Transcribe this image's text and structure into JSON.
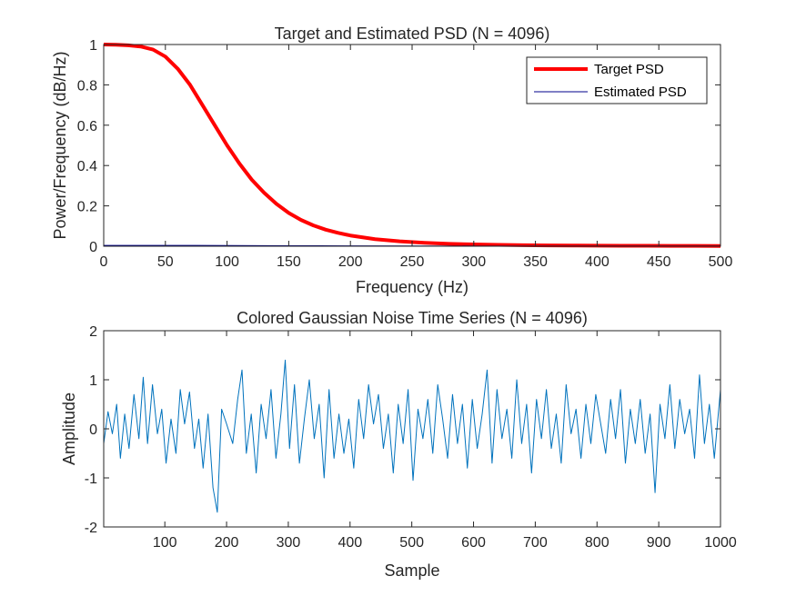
{
  "chart_data": [
    {
      "type": "line",
      "title": "Target and Estimated PSD (N = 4096)",
      "xlabel": "Frequency (Hz)",
      "ylabel": "Power/Frequency (dB/Hz)",
      "xlim": [
        0,
        500
      ],
      "ylim": [
        0,
        1
      ],
      "xticks": [
        0,
        50,
        100,
        150,
        200,
        250,
        300,
        350,
        400,
        450,
        500
      ],
      "yticks": [
        0,
        0.2,
        0.4,
        0.6,
        0.8,
        1
      ],
      "ytick_labels": [
        "0",
        "0.2",
        "0.4",
        "0.6",
        "0.8",
        "1"
      ],
      "grid": false,
      "legend": {
        "location": "top-right",
        "entries": [
          "Target PSD",
          "Estimated PSD"
        ]
      },
      "series": [
        {
          "name": "Target PSD",
          "color": "#ff0000",
          "x": [
            0,
            10,
            20,
            30,
            40,
            50,
            60,
            70,
            80,
            90,
            100,
            110,
            120,
            130,
            140,
            150,
            160,
            170,
            180,
            190,
            200,
            220,
            240,
            260,
            280,
            300,
            320,
            340,
            360,
            380,
            400,
            420,
            440,
            460,
            480,
            500
          ],
          "y": [
            1.0,
            0.999,
            0.996,
            0.99,
            0.975,
            0.94,
            0.88,
            0.8,
            0.7,
            0.6,
            0.5,
            0.41,
            0.33,
            0.265,
            0.21,
            0.165,
            0.13,
            0.103,
            0.082,
            0.066,
            0.053,
            0.035,
            0.024,
            0.017,
            0.012,
            0.009,
            0.007,
            0.005,
            0.004,
            0.0035,
            0.003,
            0.0025,
            0.002,
            0.0018,
            0.0015,
            0.0012
          ]
        },
        {
          "name": "Estimated PSD",
          "color": "#00008b",
          "x": [
            0,
            25,
            50,
            75,
            100,
            125,
            150,
            175,
            200,
            250,
            300,
            350,
            400,
            450,
            500
          ],
          "y": [
            0.004,
            0.004,
            0.004,
            0.004,
            0.0035,
            0.003,
            0.0025,
            0.002,
            0.0015,
            0.001,
            0.0008,
            0.0006,
            0.0005,
            0.0004,
            0.0003
          ]
        }
      ]
    },
    {
      "type": "line",
      "title": "Colored Gaussian Noise Time Series (N = 4096)",
      "xlabel": "Sample",
      "ylabel": "Amplitude",
      "xlim": [
        1,
        1000
      ],
      "ylim": [
        -2,
        2
      ],
      "xticks": [
        100,
        200,
        300,
        400,
        500,
        600,
        700,
        800,
        900,
        1000
      ],
      "yticks": [
        -2,
        -1,
        0,
        1,
        2
      ],
      "grid": false,
      "series": [
        {
          "name": "Amplitude",
          "color": "#0072bd",
          "x": [
            1,
            8,
            15,
            22,
            28,
            35,
            42,
            50,
            58,
            65,
            72,
            80,
            88,
            95,
            102,
            110,
            118,
            125,
            132,
            140,
            148,
            155,
            162,
            170,
            178,
            185,
            192,
            200,
            210,
            218,
            225,
            232,
            240,
            248,
            256,
            264,
            272,
            280,
            288,
            295,
            302,
            310,
            318,
            326,
            334,
            342,
            350,
            358,
            366,
            374,
            382,
            390,
            398,
            406,
            414,
            422,
            430,
            438,
            446,
            454,
            462,
            470,
            478,
            486,
            494,
            502,
            510,
            518,
            526,
            534,
            542,
            550,
            558,
            566,
            574,
            582,
            590,
            598,
            606,
            614,
            622,
            630,
            638,
            646,
            654,
            662,
            670,
            678,
            686,
            694,
            702,
            710,
            718,
            726,
            734,
            742,
            750,
            758,
            766,
            774,
            782,
            790,
            798,
            806,
            814,
            822,
            830,
            838,
            846,
            854,
            862,
            870,
            878,
            886,
            894,
            902,
            910,
            918,
            926,
            934,
            942,
            950,
            958,
            966,
            974,
            982,
            990,
            1000
          ],
          "y": [
            -0.3,
            0.35,
            -0.1,
            0.5,
            -0.6,
            0.3,
            -0.4,
            0.7,
            -0.2,
            1.05,
            -0.3,
            0.9,
            -0.1,
            0.4,
            -0.7,
            0.2,
            -0.5,
            0.8,
            0.1,
            0.75,
            -0.4,
            0.2,
            -0.8,
            0.3,
            -1.2,
            -1.7,
            0.4,
            0.1,
            -0.3,
            0.6,
            1.2,
            -0.5,
            0.3,
            -0.9,
            0.5,
            -0.2,
            0.8,
            -0.6,
            0.3,
            1.4,
            -0.4,
            0.9,
            -0.7,
            0.2,
            1.0,
            -0.2,
            0.5,
            -1.0,
            0.8,
            -0.6,
            0.3,
            -0.5,
            0.2,
            -0.8,
            0.6,
            -0.2,
            0.9,
            0.1,
            0.7,
            -0.4,
            0.3,
            -0.9,
            0.5,
            -0.3,
            0.8,
            -1.05,
            0.4,
            -0.2,
            0.6,
            -0.5,
            0.9,
            0.2,
            -0.6,
            0.7,
            -0.3,
            0.5,
            -0.8,
            0.6,
            -0.4,
            0.3,
            1.2,
            -0.7,
            0.8,
            -0.2,
            0.4,
            -0.6,
            1.0,
            -0.3,
            0.5,
            -0.9,
            0.6,
            -0.2,
            0.8,
            -0.4,
            0.3,
            -0.7,
            0.9,
            -0.1,
            0.4,
            -0.6,
            0.5,
            -0.3,
            0.7,
            0.1,
            -0.5,
            0.6,
            -0.2,
            0.8,
            -0.7,
            0.4,
            -0.3,
            0.6,
            -0.5,
            0.3,
            -1.3,
            0.5,
            -0.2,
            0.9,
            -0.4,
            0.6,
            -0.1,
            0.4,
            -0.6,
            1.1,
            -0.3,
            0.5,
            -0.6,
            0.8
          ]
        }
      ]
    }
  ]
}
